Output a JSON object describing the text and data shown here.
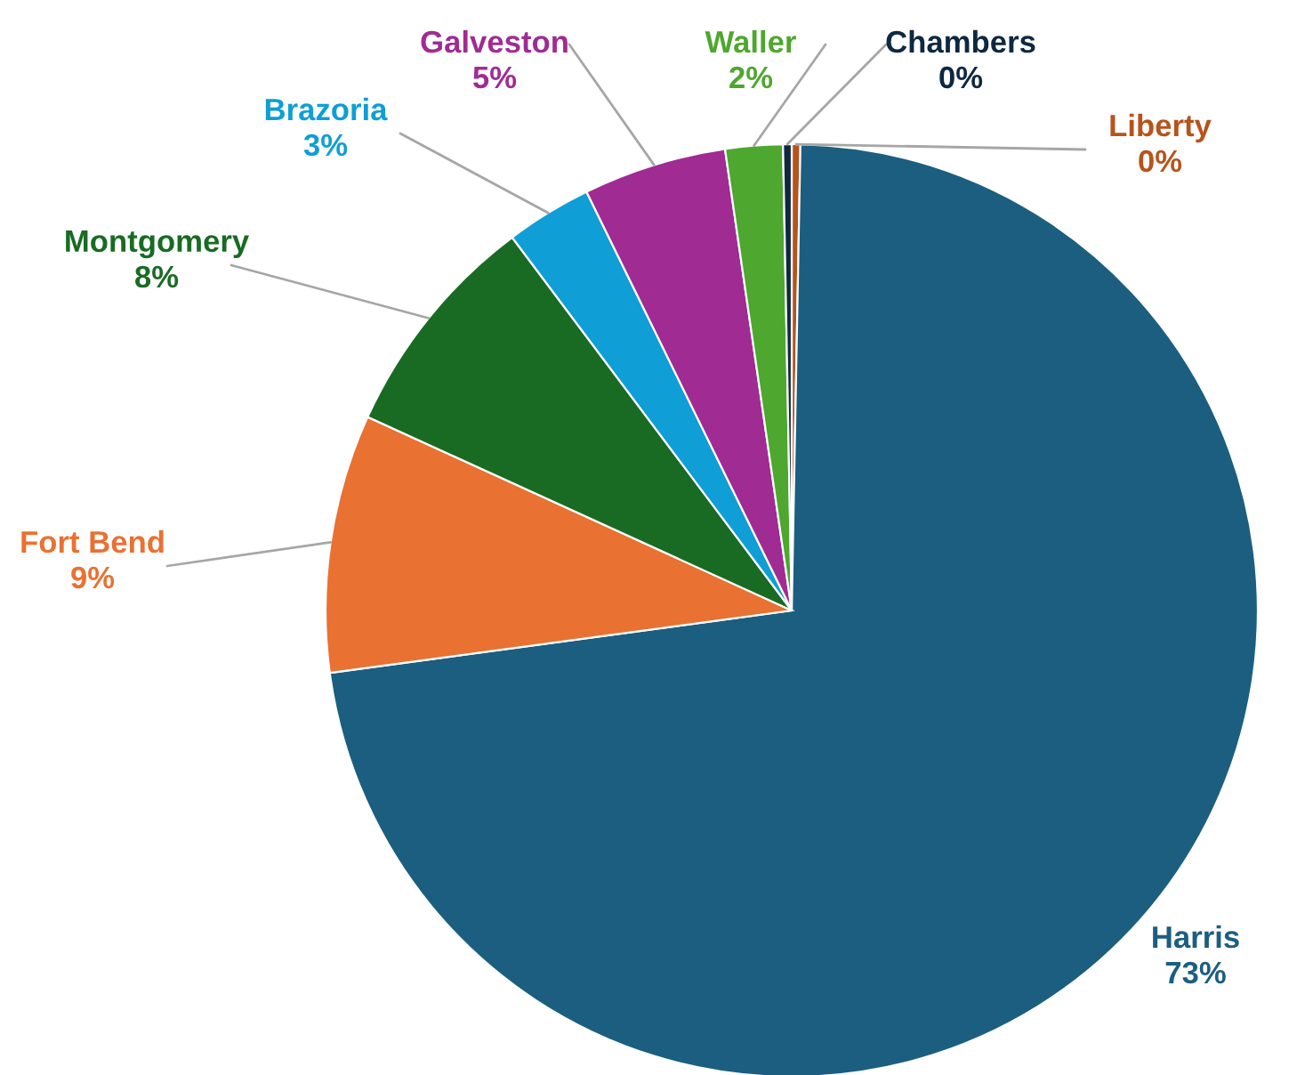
{
  "chart_data": {
    "type": "pie",
    "categories": [
      "Liberty",
      "Harris",
      "Fort Bend",
      "Montgomery",
      "Brazoria",
      "Galveston",
      "Waller",
      "Chambers"
    ],
    "values": [
      0.3,
      73,
      9,
      8,
      3,
      5,
      2,
      0.3
    ],
    "value_labels": [
      "0%",
      "73%",
      "9%",
      "8%",
      "3%",
      "5%",
      "2%",
      "0%"
    ],
    "colors": [
      "#b5541c",
      "#1b5e80",
      "#e97132",
      "#196b24",
      "#0f9ed5",
      "#a02b93",
      "#4ea72e",
      "#0e2841"
    ]
  }
}
